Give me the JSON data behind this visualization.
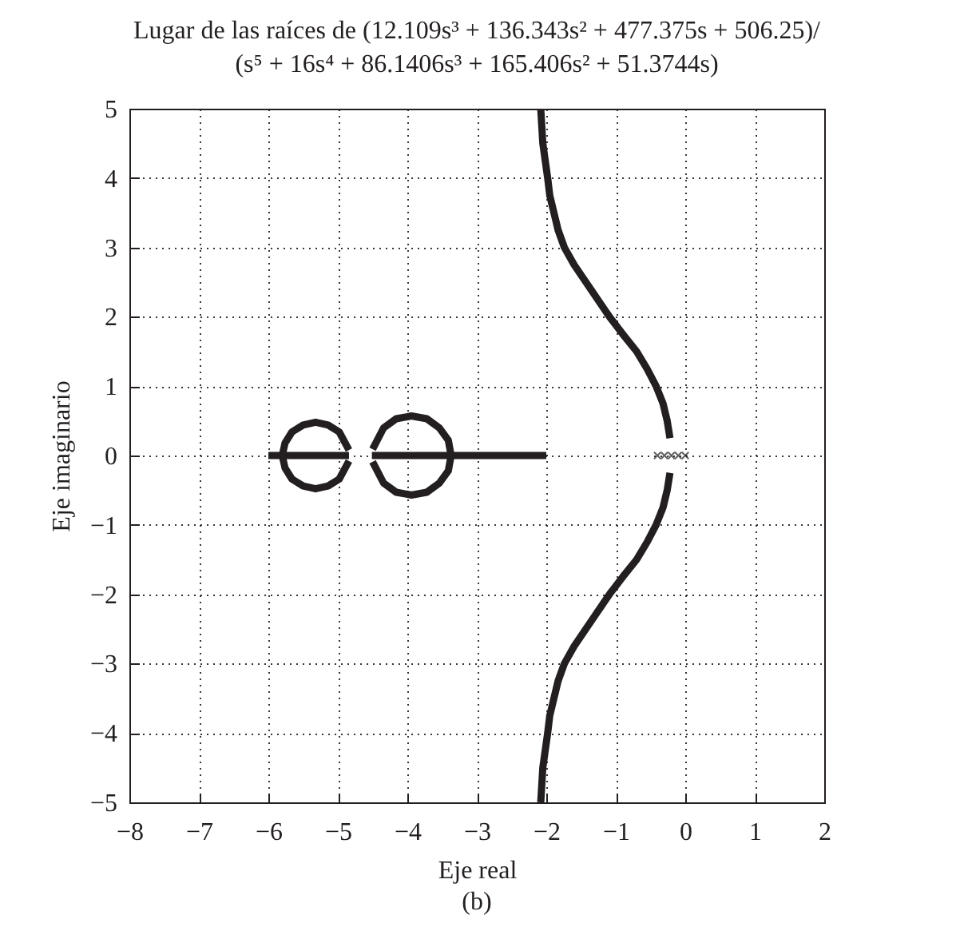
{
  "chart_data": {
    "type": "line",
    "title": "Lugar de las raíces de (12.109s³ + 136.343s² + 477.375s + 506.25)/\n(s⁵ + 16s⁴ + 86.1406s³ + 165.406s² + 51.3744s)",
    "xlabel": "Eje real",
    "ylabel": "Eje imaginario",
    "annotations": [
      "(b)"
    ],
    "xlim": [
      -8,
      2
    ],
    "ylim": [
      -5,
      5
    ],
    "xticks": [
      -8,
      -7,
      -6,
      -5,
      -4,
      -3,
      -2,
      -1,
      0,
      1,
      2
    ],
    "yticks": [
      -5,
      -4,
      -3,
      -2,
      -1,
      0,
      1,
      2,
      3,
      4,
      5
    ],
    "grid": true,
    "line_style": "solid",
    "series": [
      {
        "color": "#231f20",
        "x": [
          -2.08,
          -2.05,
          -1.98,
          -1.95,
          -1.89,
          -1.83,
          -1.74,
          -1.6,
          -1.43,
          -1.26,
          -1.09,
          -0.9,
          -0.7,
          -0.55,
          -0.42,
          -0.32,
          -0.26,
          -0.22
        ],
        "values": [
          5,
          4.5,
          4,
          3.75,
          3.5,
          3.25,
          3,
          2.75,
          2.5,
          2.25,
          2,
          1.75,
          1.5,
          1.25,
          1,
          0.75,
          0.5,
          0.25
        ]
      },
      {
        "color": "#231f20",
        "x": [
          -2.08,
          -2.05,
          -1.98,
          -1.95,
          -1.89,
          -1.83,
          -1.74,
          -1.6,
          -1.43,
          -1.26,
          -1.09,
          -0.9,
          -0.7,
          -0.55,
          -0.42,
          -0.32,
          -0.26,
          -0.22
        ],
        "values": [
          -5,
          -4.5,
          -4,
          -3.75,
          -3.5,
          -3.25,
          -3,
          -2.75,
          -2.5,
          -2.25,
          -2,
          -1.75,
          -1.5,
          -1.25,
          -1,
          -0.75,
          -0.5,
          -0.25
        ]
      },
      {
        "color": "#231f20",
        "x": [
          -6.0,
          -5.8,
          -5.6,
          -5.4,
          -5.2,
          -5.0,
          -4.84
        ],
        "values": [
          0,
          0,
          0,
          0,
          0,
          0,
          0
        ]
      },
      {
        "color": "#231f20",
        "x": [
          -4.51,
          -4.0,
          -3.5,
          -3.0,
          -2.5,
          -2.0
        ],
        "values": [
          0,
          0,
          0,
          0,
          0,
          0
        ]
      },
      {
        "color": "#231f20",
        "x": [
          -4.84,
          -4.98,
          -5.14,
          -5.32,
          -5.5,
          -5.66,
          -5.76,
          -5.8,
          -5.76,
          -5.66,
          -5.5,
          -5.32,
          -5.14,
          -4.98,
          -4.84
        ],
        "values": [
          0.08,
          0.34,
          0.44,
          0.48,
          0.44,
          0.34,
          0.18,
          0,
          -0.18,
          -0.34,
          -0.44,
          -0.48,
          -0.44,
          -0.34,
          -0.08
        ]
      },
      {
        "color": "#231f20",
        "x": [
          -4.5,
          -4.34,
          -4.16,
          -3.94,
          -3.72,
          -3.54,
          -3.41,
          -3.37,
          -3.41,
          -3.54,
          -3.72,
          -3.94,
          -4.16,
          -4.34,
          -4.5
        ],
        "values": [
          0.09,
          0.4,
          0.53,
          0.57,
          0.53,
          0.4,
          0.22,
          0,
          -0.22,
          -0.4,
          -0.53,
          -0.57,
          -0.53,
          -0.4,
          -0.09
        ]
      },
      {
        "type": "scatter",
        "marker": "cross",
        "color": "#231f20",
        "x": [
          -0.4,
          -0.3,
          -0.2,
          -0.1,
          0
        ],
        "values": [
          0,
          0,
          0,
          0,
          0
        ]
      }
    ]
  }
}
